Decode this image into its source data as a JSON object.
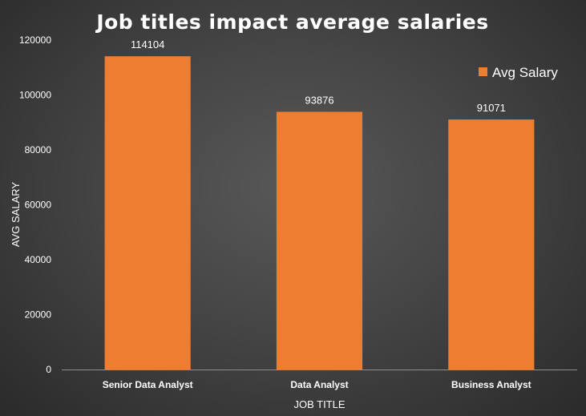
{
  "chart_data": {
    "type": "bar",
    "title": "Job titles impact average salaries",
    "xlabel": "JOB TITLE",
    "ylabel": "AVG SALARY",
    "categories": [
      "Senior Data Analyst",
      "Data Analyst",
      "Business Analyst"
    ],
    "series": [
      {
        "name": "Avg Salary",
        "values": [
          114104,
          93876,
          91071
        ],
        "color": "#ed7d31"
      }
    ],
    "data_labels": [
      "114104",
      "93876",
      "91071"
    ],
    "ylim": [
      0,
      120000
    ],
    "yticks": [
      0,
      20000,
      40000,
      60000,
      80000,
      100000,
      120000
    ],
    "ytick_labels": [
      "0",
      "20000",
      "40000",
      "60000",
      "80000",
      "100000",
      "120000"
    ],
    "grid": false,
    "legend_position": "top-right"
  }
}
